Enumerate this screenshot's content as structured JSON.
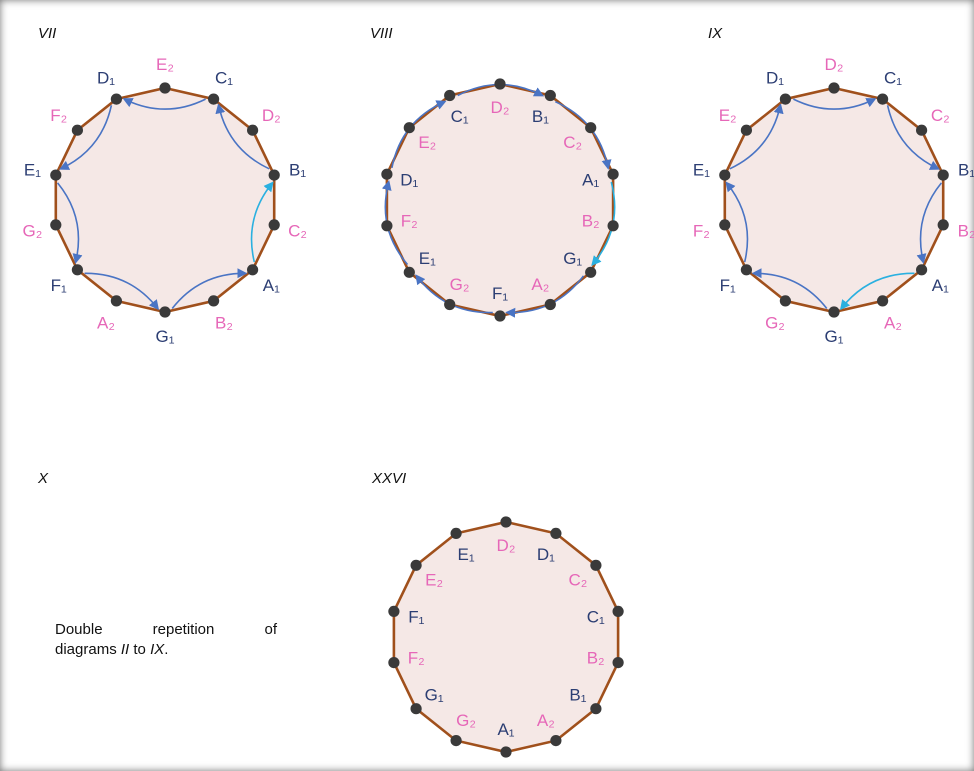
{
  "colors": {
    "blue_label": "#2c3e73",
    "pink_label": "#e667b8",
    "edge": "#a0501c",
    "fill": "#f5e8e6",
    "node": "#3a3a3a",
    "arrow": "#4a74c4",
    "arrow_cyan": "#2ab0e0"
  },
  "panels": [
    {
      "id": "VII",
      "title": "VII",
      "nodes": [
        "E₂",
        "C₁",
        "D₂",
        "B₁",
        "C₂",
        "A₁",
        "B₂",
        "G₁",
        "A₂",
        "F₁",
        "G₂",
        "E₁",
        "F₂",
        "D₁"
      ],
      "arrows": [
        [
          1,
          13,
          "blue"
        ],
        [
          13,
          11,
          "blue"
        ],
        [
          11,
          9,
          "blue"
        ],
        [
          9,
          7,
          "blue"
        ],
        [
          7,
          5,
          "blue"
        ],
        [
          5,
          3,
          "cyan"
        ],
        [
          3,
          1,
          "blue"
        ]
      ]
    },
    {
      "id": "VIII",
      "title": "VIII",
      "nodes": [
        "D₂",
        "B₁",
        "C₂",
        "A₁",
        "B₂",
        "G₁",
        "A₂",
        "F₁",
        "G₂",
        "E₁",
        "F₂",
        "D₁",
        "E₂",
        "C₁"
      ],
      "arrows": [
        [
          13,
          1,
          "blue"
        ],
        [
          1,
          3,
          "blue"
        ],
        [
          3,
          5,
          "cyan"
        ],
        [
          5,
          7,
          "blue"
        ],
        [
          7,
          9,
          "blue"
        ],
        [
          9,
          11,
          "blue"
        ],
        [
          11,
          13,
          "blue"
        ]
      ]
    },
    {
      "id": "IX",
      "title": "IX",
      "nodes": [
        "D₂",
        "C₁",
        "C₂",
        "B₁",
        "B₂",
        "A₁",
        "A₂",
        "G₁",
        "G₂",
        "F₁",
        "F₂",
        "E₁",
        "E₂",
        "D₁"
      ],
      "arrows": [
        [
          13,
          1,
          "blue"
        ],
        [
          1,
          3,
          "blue"
        ],
        [
          3,
          5,
          "blue"
        ],
        [
          5,
          7,
          "cyan"
        ],
        [
          7,
          9,
          "blue"
        ],
        [
          9,
          11,
          "blue"
        ],
        [
          11,
          13,
          "blue"
        ]
      ]
    },
    {
      "id": "XXVI",
      "title": "XXVI",
      "nodes": [
        "D₂",
        "D₁",
        "C₂",
        "C₁",
        "B₂",
        "B₁",
        "A₂",
        "A₁",
        "G₂",
        "G₁",
        "F₂",
        "F₁",
        "E₂",
        "E₁"
      ],
      "arrows": []
    }
  ],
  "panel_x": {
    "title": "X"
  },
  "description": {
    "line1_words": [
      "Double",
      "repetition",
      "of"
    ],
    "line2_prefix": "diagrams ",
    "line2_em1": "II",
    "line2_mid": " to ",
    "line2_em2": "IX",
    "line2_suffix": "."
  }
}
